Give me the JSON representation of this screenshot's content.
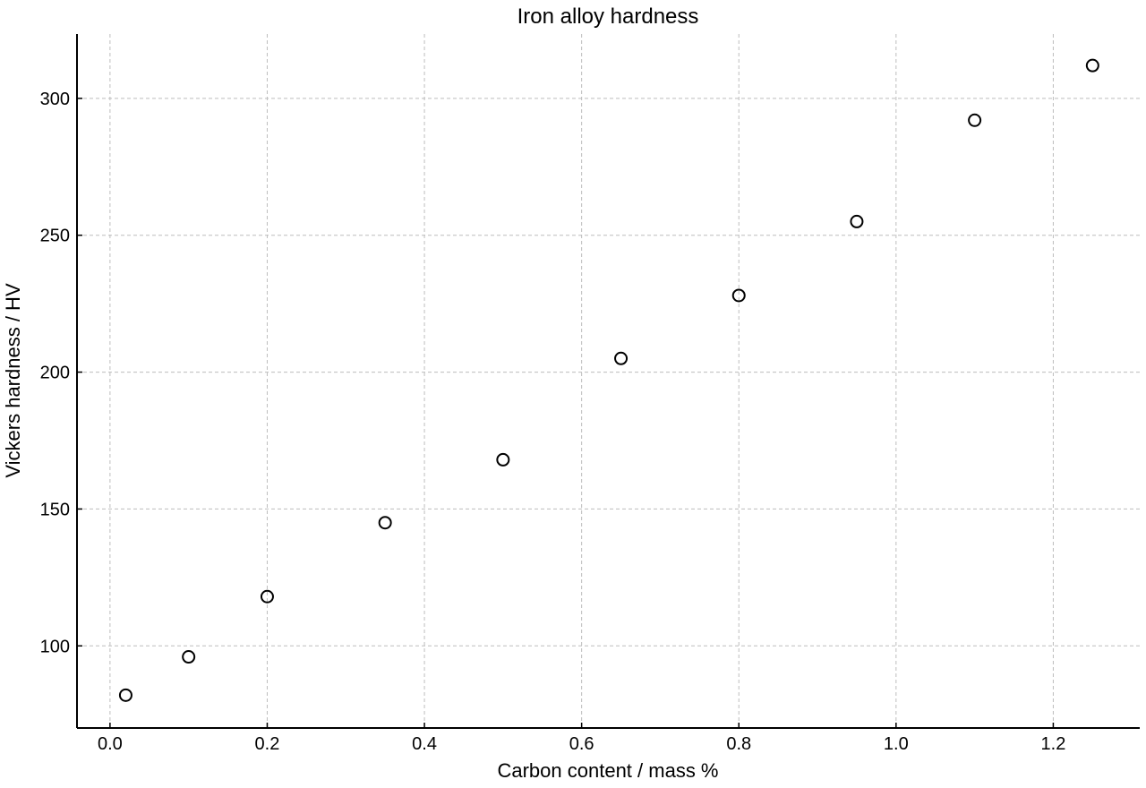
{
  "chart_data": {
    "type": "scatter",
    "title": "Iron alloy hardness",
    "xlabel": "Carbon content / mass %",
    "ylabel": "Vickers hardness / HV",
    "xlim": [
      -0.042,
      1.31
    ],
    "ylim": [
      70,
      323.5
    ],
    "xticks": [
      0.0,
      0.2,
      0.4,
      0.6,
      0.8,
      1.0,
      1.2
    ],
    "yticks": [
      100,
      150,
      200,
      250,
      300
    ],
    "grid": true,
    "series": [
      {
        "x": [
          0.02,
          0.1,
          0.2,
          0.35,
          0.5,
          0.65,
          0.8,
          0.95,
          1.1,
          1.25
        ],
        "y": [
          82,
          96,
          118,
          145,
          168,
          205,
          228,
          255,
          292,
          312
        ]
      }
    ],
    "colors": {
      "marker": "#000000",
      "grid": "#bdbdbd"
    }
  }
}
